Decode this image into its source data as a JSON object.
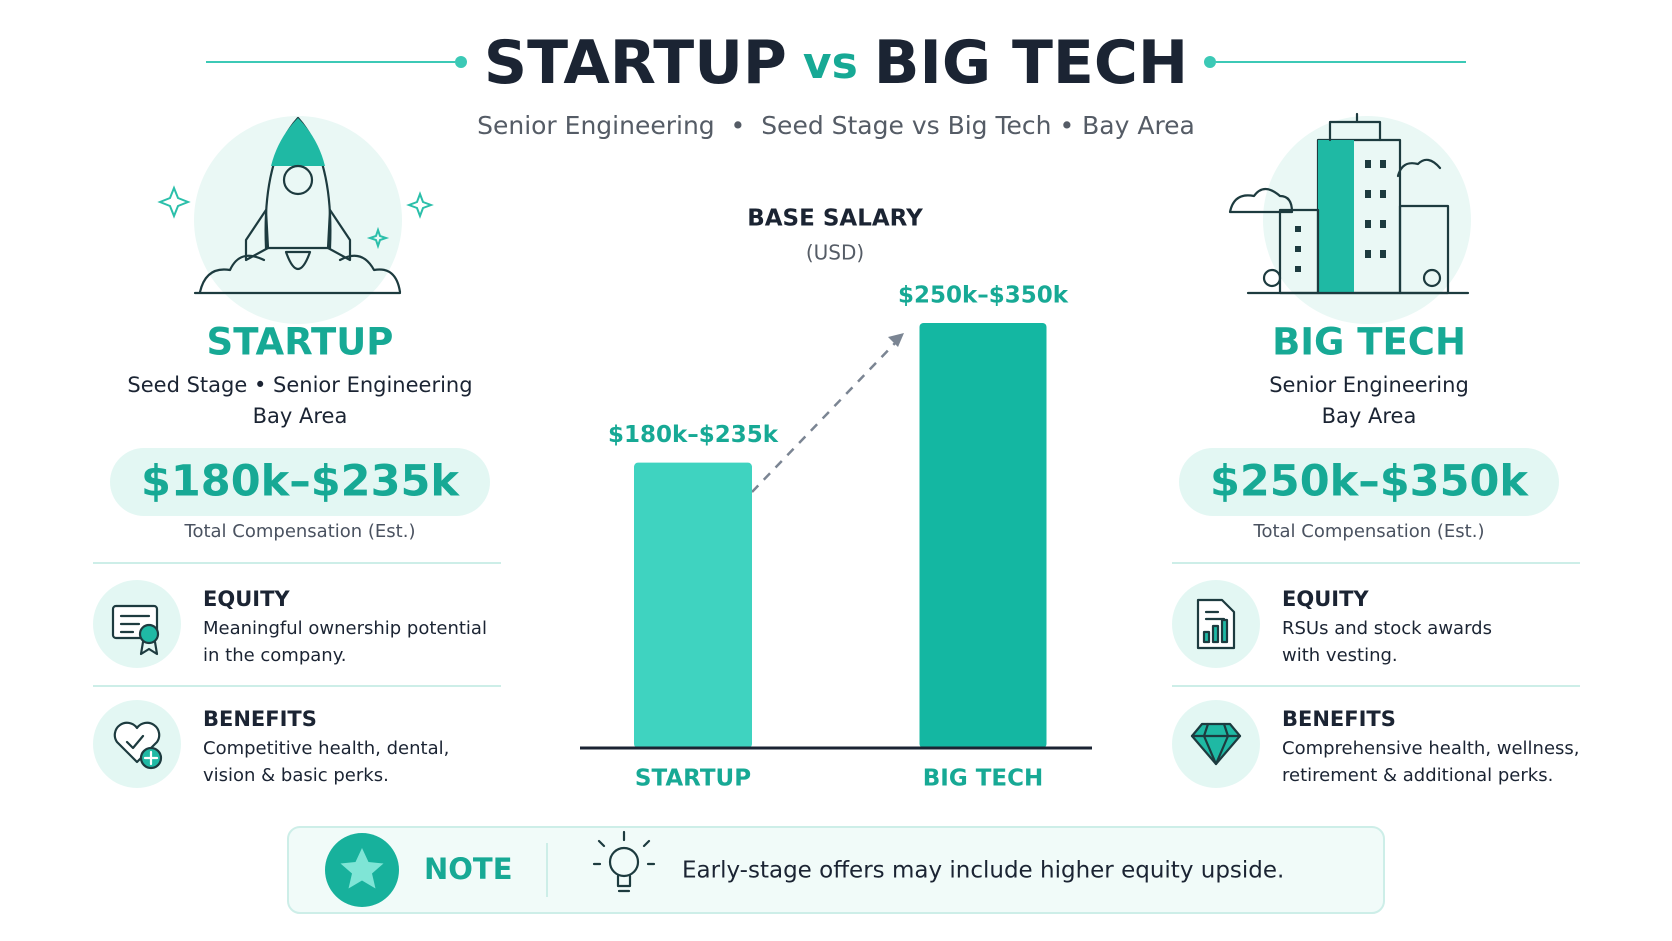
{
  "header": {
    "title_left": "STARTUP",
    "title_vs": "vs",
    "title_right": "BIG TECH",
    "subtitle": "Senior Engineering  •  Seed Stage vs Big Tech • Bay Area"
  },
  "panels": [
    {
      "title": "STARTUP",
      "lines": [
        "Seed Stage • Senior Engineering",
        "Bay Area"
      ],
      "compensation": "$180k–$235k",
      "compensation_note": "Total Compensation (Est.)",
      "items": [
        {
          "title": "EQUITY",
          "lines": [
            "Meaningful ownership potential",
            "in the company."
          ]
        },
        {
          "title": "BENEFITS",
          "lines": [
            "Competitive health, dental,",
            "vision & basic perks."
          ]
        }
      ]
    },
    {
      "title": "BIG TECH",
      "lines": [
        "Senior Engineering",
        "Bay Area"
      ],
      "compensation": "$250k–$350k",
      "compensation_note": "Total Compensation (Est.)",
      "items": [
        {
          "title": "EQUITY",
          "lines": [
            "RSUs and stock awards",
            "with vesting."
          ]
        },
        {
          "title": "BENEFITS",
          "lines": [
            "Comprehensive health, wellness,",
            "retirement & additional perks."
          ]
        }
      ]
    }
  ],
  "chart_data": {
    "type": "bar",
    "title": "BASE SALARY",
    "subtitle": "(USD)",
    "categories": [
      "STARTUP",
      "BIG TECH"
    ],
    "values": [
      235,
      350
    ],
    "value_labels": [
      "$180k–$235k",
      "$250k–$350k"
    ],
    "colors": [
      "#3fd3c0",
      "#14b7a2"
    ]
  },
  "note": {
    "label": "NOTE",
    "text": "Early-stage offers may include higher equity upside."
  }
}
